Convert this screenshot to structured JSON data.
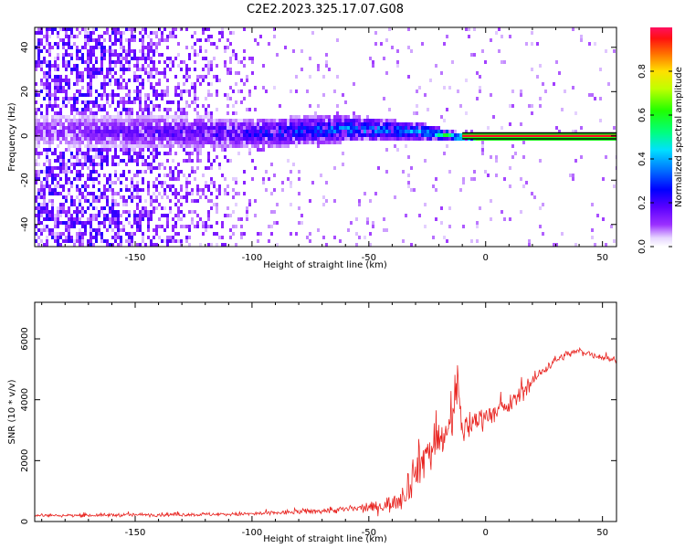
{
  "figure": {
    "title": "C2E2.2023.325.17.07.G08"
  },
  "colors": {
    "axis": "#000000",
    "snr_line": "#e8231f",
    "background": "#ffffff"
  },
  "chart_data": [
    {
      "type": "heatmap",
      "xlabel": "Height of straight line (km)",
      "ylabel": "Frequency (Hz)",
      "xlim": [
        -193,
        56
      ],
      "ylim": [
        -50,
        49
      ],
      "xticks": [
        -150,
        -100,
        -50,
        0,
        50
      ],
      "xtick_labels": [
        "-150",
        "-100",
        "-50",
        "0",
        "50"
      ],
      "yticks": [
        -40,
        -20,
        0,
        20,
        40
      ],
      "ytick_labels": [
        "-40",
        "-20",
        "0",
        "20",
        "40"
      ],
      "colormap": "hsv-like (violet to red)",
      "colorbar": {
        "label": "Normalized spectral amplitude",
        "ticks": [
          0.0,
          0.2,
          0.4,
          0.6,
          0.8
        ],
        "tick_labels": [
          "0.0",
          "0.2",
          "0.4",
          "0.6",
          "0.8"
        ],
        "range": [
          0,
          1
        ]
      },
      "description_points": [
        {
          "x": -193,
          "center_hz": 3,
          "band_halfwidth_hz": 8,
          "peak_amplitude": 0.15
        },
        {
          "x": -100,
          "center_hz": 2,
          "band_halfwidth_hz": 7,
          "peak_amplitude": 0.3
        },
        {
          "x": -60,
          "center_hz": 4,
          "band_halfwidth_hz": 6,
          "peak_amplitude": 0.45
        },
        {
          "x": -30,
          "center_hz": 3,
          "band_halfwidth_hz": 4,
          "peak_amplitude": 0.5
        },
        {
          "x": -10,
          "center_hz": 0,
          "band_halfwidth_hz": 2,
          "peak_amplitude": 0.7
        },
        {
          "x": 0,
          "center_hz": 0,
          "band_halfwidth_hz": 1,
          "peak_amplitude": 1.0
        },
        {
          "x": 56,
          "center_hz": 0,
          "band_halfwidth_hz": 1,
          "peak_amplitude": 1.0
        }
      ]
    },
    {
      "type": "line",
      "xlabel": "Height of straight line (km)",
      "ylabel": "SNR (10 * v/v)",
      "xlim": [
        -193,
        56
      ],
      "ylim": [
        0,
        7200
      ],
      "xticks": [
        -150,
        -100,
        -50,
        0,
        50
      ],
      "xtick_labels": [
        "-150",
        "-100",
        "-50",
        "0",
        "50"
      ],
      "yticks": [
        0,
        2000,
        4000,
        6000
      ],
      "ytick_labels": [
        "0",
        "2000",
        "4000",
        "6000"
      ],
      "series": [
        {
          "x": [
            -193,
            -175,
            -150,
            -125,
            -100,
            -90,
            -80,
            -70,
            -60,
            -50,
            -45,
            -40,
            -35,
            -30,
            -25,
            -20,
            -15,
            -12,
            -10,
            -8,
            -5,
            0,
            5,
            10,
            15,
            20,
            25,
            30,
            35,
            40,
            45,
            50,
            56
          ],
          "y": [
            200,
            200,
            220,
            230,
            250,
            280,
            320,
            350,
            400,
            450,
            500,
            600,
            900,
            1700,
            2300,
            2600,
            3000,
            4800,
            2800,
            3100,
            3300,
            3500,
            3600,
            3800,
            4200,
            4600,
            5000,
            5300,
            5500,
            5600,
            5500,
            5400,
            5300
          ],
          "noise_amplitude": [
            80,
            90,
            100,
            100,
            120,
            130,
            150,
            160,
            200,
            260,
            350,
            500,
            800,
            1200,
            1300,
            1300,
            1300,
            1500,
            900,
            800,
            700,
            600,
            500,
            500,
            450,
            400,
            300,
            250,
            200,
            200,
            200,
            200,
            200
          ]
        }
      ]
    }
  ]
}
